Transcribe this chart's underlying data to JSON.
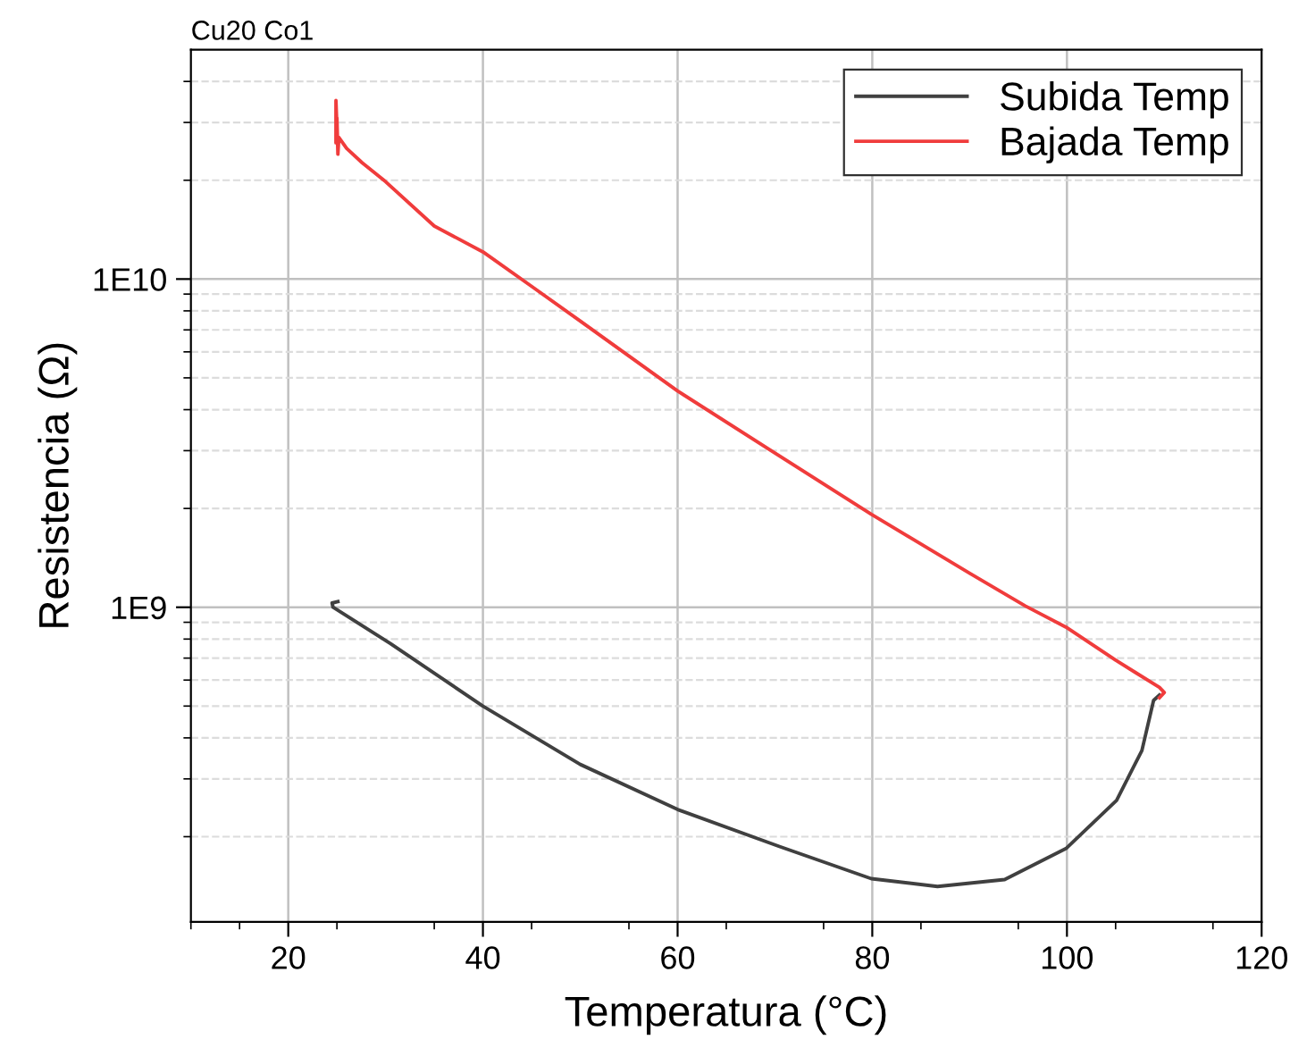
{
  "chart_data": {
    "type": "line",
    "title": "Cu20 Co1",
    "xlabel": "Temperatura (°C)",
    "ylabel": "Resistencia (Ω)",
    "log": "y",
    "grid": true,
    "legend": "top right",
    "marker": "none",
    "line_style": "solid",
    "xlim": [
      10,
      120
    ],
    "xticks": [
      {
        "value": 10,
        "label": null
      },
      {
        "value": 15,
        "label": null
      },
      20,
      {
        "value": 25,
        "label": null
      },
      40,
      {
        "value": 35,
        "label": null
      },
      {
        "value": 45,
        "label": null
      },
      60,
      {
        "value": 55,
        "label": null
      },
      {
        "value": 65,
        "label": null
      },
      80,
      {
        "value": 75,
        "label": null
      },
      {
        "value": 85,
        "label": null
      },
      100,
      {
        "value": 95,
        "label": null
      },
      {
        "value": 105,
        "label": null
      },
      120,
      {
        "value": 115,
        "label": null
      }
    ],
    "ylim": [
      110000000.0,
      50000000000.0
    ],
    "yticks": [
      {
        "value": 200000000.0,
        "label": null
      },
      {
        "value": 300000000.0,
        "label": null
      },
      {
        "value": 400000000.0,
        "label": null
      },
      {
        "value": 500000000.0,
        "label": null
      },
      {
        "value": 600000000.0,
        "label": null
      },
      {
        "value": 700000000.0,
        "label": null
      },
      {
        "value": 800000000.0,
        "label": null
      },
      {
        "value": 900000000.0,
        "label": null
      },
      {
        "value": 1000000000.0,
        "label": "1E9"
      },
      {
        "value": 2000000000.0,
        "label": null
      },
      {
        "value": 3000000000.0,
        "label": null
      },
      {
        "value": 4000000000.0,
        "label": null
      },
      {
        "value": 5000000000.0,
        "label": null
      },
      {
        "value": 6000000000.0,
        "label": null
      },
      {
        "value": 7000000000.0,
        "label": null
      },
      {
        "value": 8000000000.0,
        "label": null
      },
      {
        "value": 9000000000.0,
        "label": null
      },
      {
        "value": 10000000000.0,
        "label": "1E10"
      },
      {
        "value": 20000000000.0,
        "label": null
      },
      {
        "value": 30000000000.0,
        "label": null
      },
      {
        "value": 40000000000.0,
        "label": null
      }
    ],
    "series": [
      {
        "name": "Subida Temp",
        "color": "#404040",
        "x": [
          25.1,
          24.5,
          24.6,
          30.5,
          40,
          50,
          60,
          70.4,
          79.9,
          86.7,
          93.6,
          99.9,
          105.1,
          107.7,
          108.9,
          109.5
        ],
        "values": [
          1040000000.0,
          1030000000.0,
          1000000000.0,
          775000000.0,
          500000000.0,
          332000000.0,
          242000000.0,
          187000000.0,
          149000000.0,
          141000000.0,
          148000000.0,
          184000000.0,
          258000000.0,
          366000000.0,
          520000000.0,
          540000000.0
        ]
      },
      {
        "name": "Bajada Temp",
        "color": "#f03c3c",
        "x": [
          109.5,
          110.0,
          109.5,
          105,
          99.9,
          95.7,
          90,
          79.9,
          70,
          60,
          50,
          45,
          40,
          35,
          30,
          27.6,
          26,
          25.2,
          25.1,
          25.0,
          24.9,
          24.9,
          25.0
        ],
        "values": [
          530000000.0,
          550000000.0,
          570000000.0,
          690000000.0,
          870000000.0,
          1010000000.0,
          1270000000.0,
          1920000000.0,
          2950000000.0,
          4560000000.0,
          7450000000.0,
          9500000000.0,
          12100000000.0,
          14500000000.0,
          19800000000.0,
          22600000000.0,
          25000000000.0,
          27000000000.0,
          24000000000.0,
          31000000000.0,
          26000000000.0,
          35000000000.0,
          29000000000.0
        ]
      }
    ]
  }
}
